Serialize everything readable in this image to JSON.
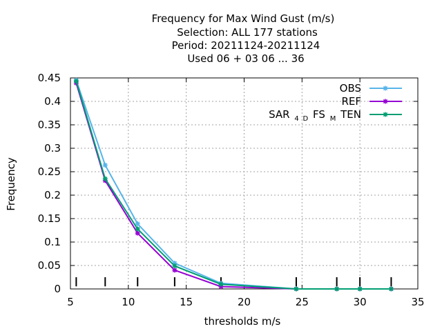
{
  "chart_data": {
    "type": "line",
    "title_lines": [
      "Frequency  for Max Wind Gust (m/s)",
      "Selection: ALL    177 stations",
      "Period: 20211124-20211124",
      "Used  06 + 03 06 ... 36"
    ],
    "xlabel": "thresholds m/s",
    "ylabel": "Frequency",
    "xlim": [
      5,
      35
    ],
    "ylim": [
      0,
      0.45
    ],
    "xticks": [
      "5",
      "10",
      "15",
      "20",
      "25",
      "30",
      "35"
    ],
    "yticks": [
      "0",
      "0.05",
      "0.1",
      "0.15",
      "0.2",
      "0.25",
      "0.3",
      "0.35",
      "0.4",
      "0.45"
    ],
    "threshold_marks": [
      5.5,
      8,
      10.8,
      14,
      18,
      24.5,
      28,
      30,
      32.7
    ],
    "legend_position": "top-right",
    "grid": true,
    "series": [
      {
        "name": "OBS",
        "color": "#56b4e9",
        "x": [
          5.5,
          8,
          10.8,
          14,
          18,
          24.5,
          28,
          30,
          32.7
        ],
        "y": [
          0.445,
          0.264,
          0.139,
          0.055,
          0.012,
          0.0,
          0.0,
          0.0,
          0.0
        ]
      },
      {
        "name": "REF",
        "color": "#9400d3",
        "x": [
          5.5,
          8,
          10.8,
          14,
          18,
          24.5,
          28,
          30,
          32.7
        ],
        "y": [
          0.439,
          0.231,
          0.119,
          0.04,
          0.005,
          0.0,
          0.0,
          0.0,
          0.0
        ]
      },
      {
        "name": "SAR_4DFS_MTEN",
        "display": {
          "parts": [
            "SAR",
            "4",
            "D",
            "FS",
            "M",
            "TEN"
          ]
        },
        "color": "#009e73",
        "x": [
          5.5,
          8,
          10.8,
          14,
          18,
          24.5,
          28,
          30,
          32.7
        ],
        "y": [
          0.443,
          0.235,
          0.128,
          0.049,
          0.01,
          0.0,
          0.0,
          0.0,
          0.0
        ]
      }
    ]
  }
}
